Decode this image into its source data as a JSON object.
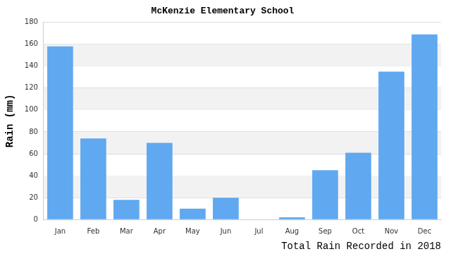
{
  "chart_data": {
    "type": "bar",
    "title": "McKenzie Elementary School",
    "x_label": "Total Rain Recorded in 2018",
    "y_label": "Rain (mm)",
    "categories": [
      "Jan",
      "Feb",
      "Mar",
      "Apr",
      "May",
      "Jun",
      "Jul",
      "Aug",
      "Sep",
      "Oct",
      "Nov",
      "Dec"
    ],
    "values": [
      158,
      74,
      18,
      70,
      10,
      20,
      0,
      2,
      45,
      61,
      135,
      169
    ],
    "color": "#60a8f0",
    "ylim": [
      0,
      180
    ],
    "yticks": [
      0,
      20,
      40,
      60,
      80,
      100,
      120,
      140,
      160,
      180
    ],
    "grid": true
  }
}
